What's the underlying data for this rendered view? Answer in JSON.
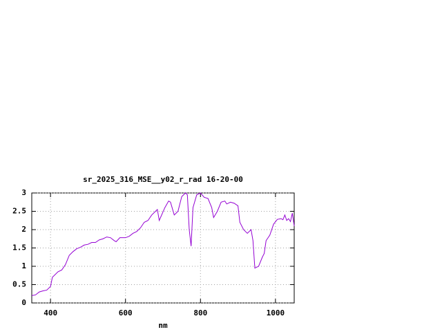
{
  "chart_data": {
    "type": "line",
    "title": "sr_2025_316_MSE__y02_r_rad 16-20-00",
    "x_label": "nm",
    "x": [
      350,
      360,
      370,
      380,
      390,
      400,
      405,
      420,
      430,
      440,
      450,
      460,
      470,
      480,
      490,
      500,
      510,
      520,
      530,
      540,
      550,
      560,
      570,
      575,
      585,
      600,
      610,
      620,
      630,
      640,
      650,
      660,
      670,
      680,
      685,
      690,
      705,
      715,
      720,
      730,
      740,
      750,
      760,
      765,
      770,
      775,
      780,
      790,
      800,
      810,
      820,
      830,
      835,
      845,
      855,
      865,
      870,
      880,
      890,
      900,
      905,
      915,
      925,
      935,
      940,
      945,
      955,
      965,
      970,
      975,
      985,
      995,
      1005,
      1015,
      1020,
      1025,
      1030,
      1035,
      1040,
      1045,
      1050
    ],
    "values": [
      0.2,
      0.22,
      0.3,
      0.33,
      0.35,
      0.45,
      0.7,
      0.85,
      0.9,
      1.05,
      1.3,
      1.4,
      1.48,
      1.52,
      1.58,
      1.6,
      1.65,
      1.65,
      1.72,
      1.75,
      1.8,
      1.78,
      1.7,
      1.67,
      1.78,
      1.78,
      1.82,
      1.9,
      1.95,
      2.05,
      2.2,
      2.25,
      2.4,
      2.5,
      2.55,
      2.25,
      2.6,
      2.78,
      2.75,
      2.4,
      2.5,
      2.9,
      3.0,
      2.95,
      2.0,
      1.55,
      2.6,
      2.95,
      3.0,
      2.88,
      2.85,
      2.6,
      2.33,
      2.5,
      2.75,
      2.78,
      2.7,
      2.75,
      2.72,
      2.65,
      2.2,
      2.0,
      1.9,
      2.0,
      1.7,
      0.95,
      1.0,
      1.25,
      1.35,
      1.7,
      1.85,
      2.15,
      2.28,
      2.3,
      2.27,
      2.4,
      2.25,
      2.3,
      2.22,
      2.45,
      2.1
    ],
    "color": "#9400d3",
    "xlim": [
      350,
      1050
    ],
    "xticks": [
      400,
      600,
      800,
      1000
    ],
    "ylim": [
      0,
      3
    ],
    "yticks": [
      0,
      0.5,
      1,
      1.5,
      2,
      2.5,
      3
    ],
    "grid": true
  }
}
